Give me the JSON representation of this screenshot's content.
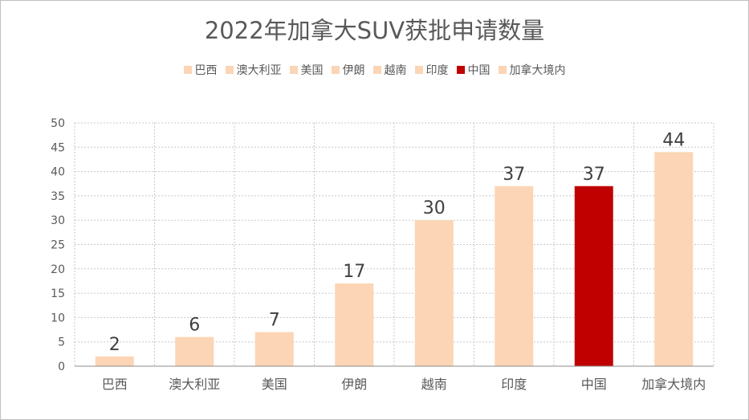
{
  "chart_data": {
    "type": "bar",
    "title": "2022年加拿大SUV获批申请数量",
    "categories": [
      "巴西",
      "澳大利亚",
      "美国",
      "伊朗",
      "越南",
      "印度",
      "中国",
      "加拿大境内"
    ],
    "values": [
      2,
      6,
      7,
      17,
      30,
      37,
      37,
      44
    ],
    "colors": [
      "#fbd5b5",
      "#fbd5b5",
      "#fbd5b5",
      "#fbd5b5",
      "#fbd5b5",
      "#fbd5b5",
      "#c00000",
      "#fbd5b5"
    ],
    "ylim": [
      0,
      50
    ],
    "yticks": [
      0,
      5,
      10,
      15,
      20,
      25,
      30,
      35,
      40,
      45,
      50
    ],
    "grid": "dotted",
    "legend_position": "top",
    "data_labels": true,
    "xlabel": "",
    "ylabel": ""
  }
}
